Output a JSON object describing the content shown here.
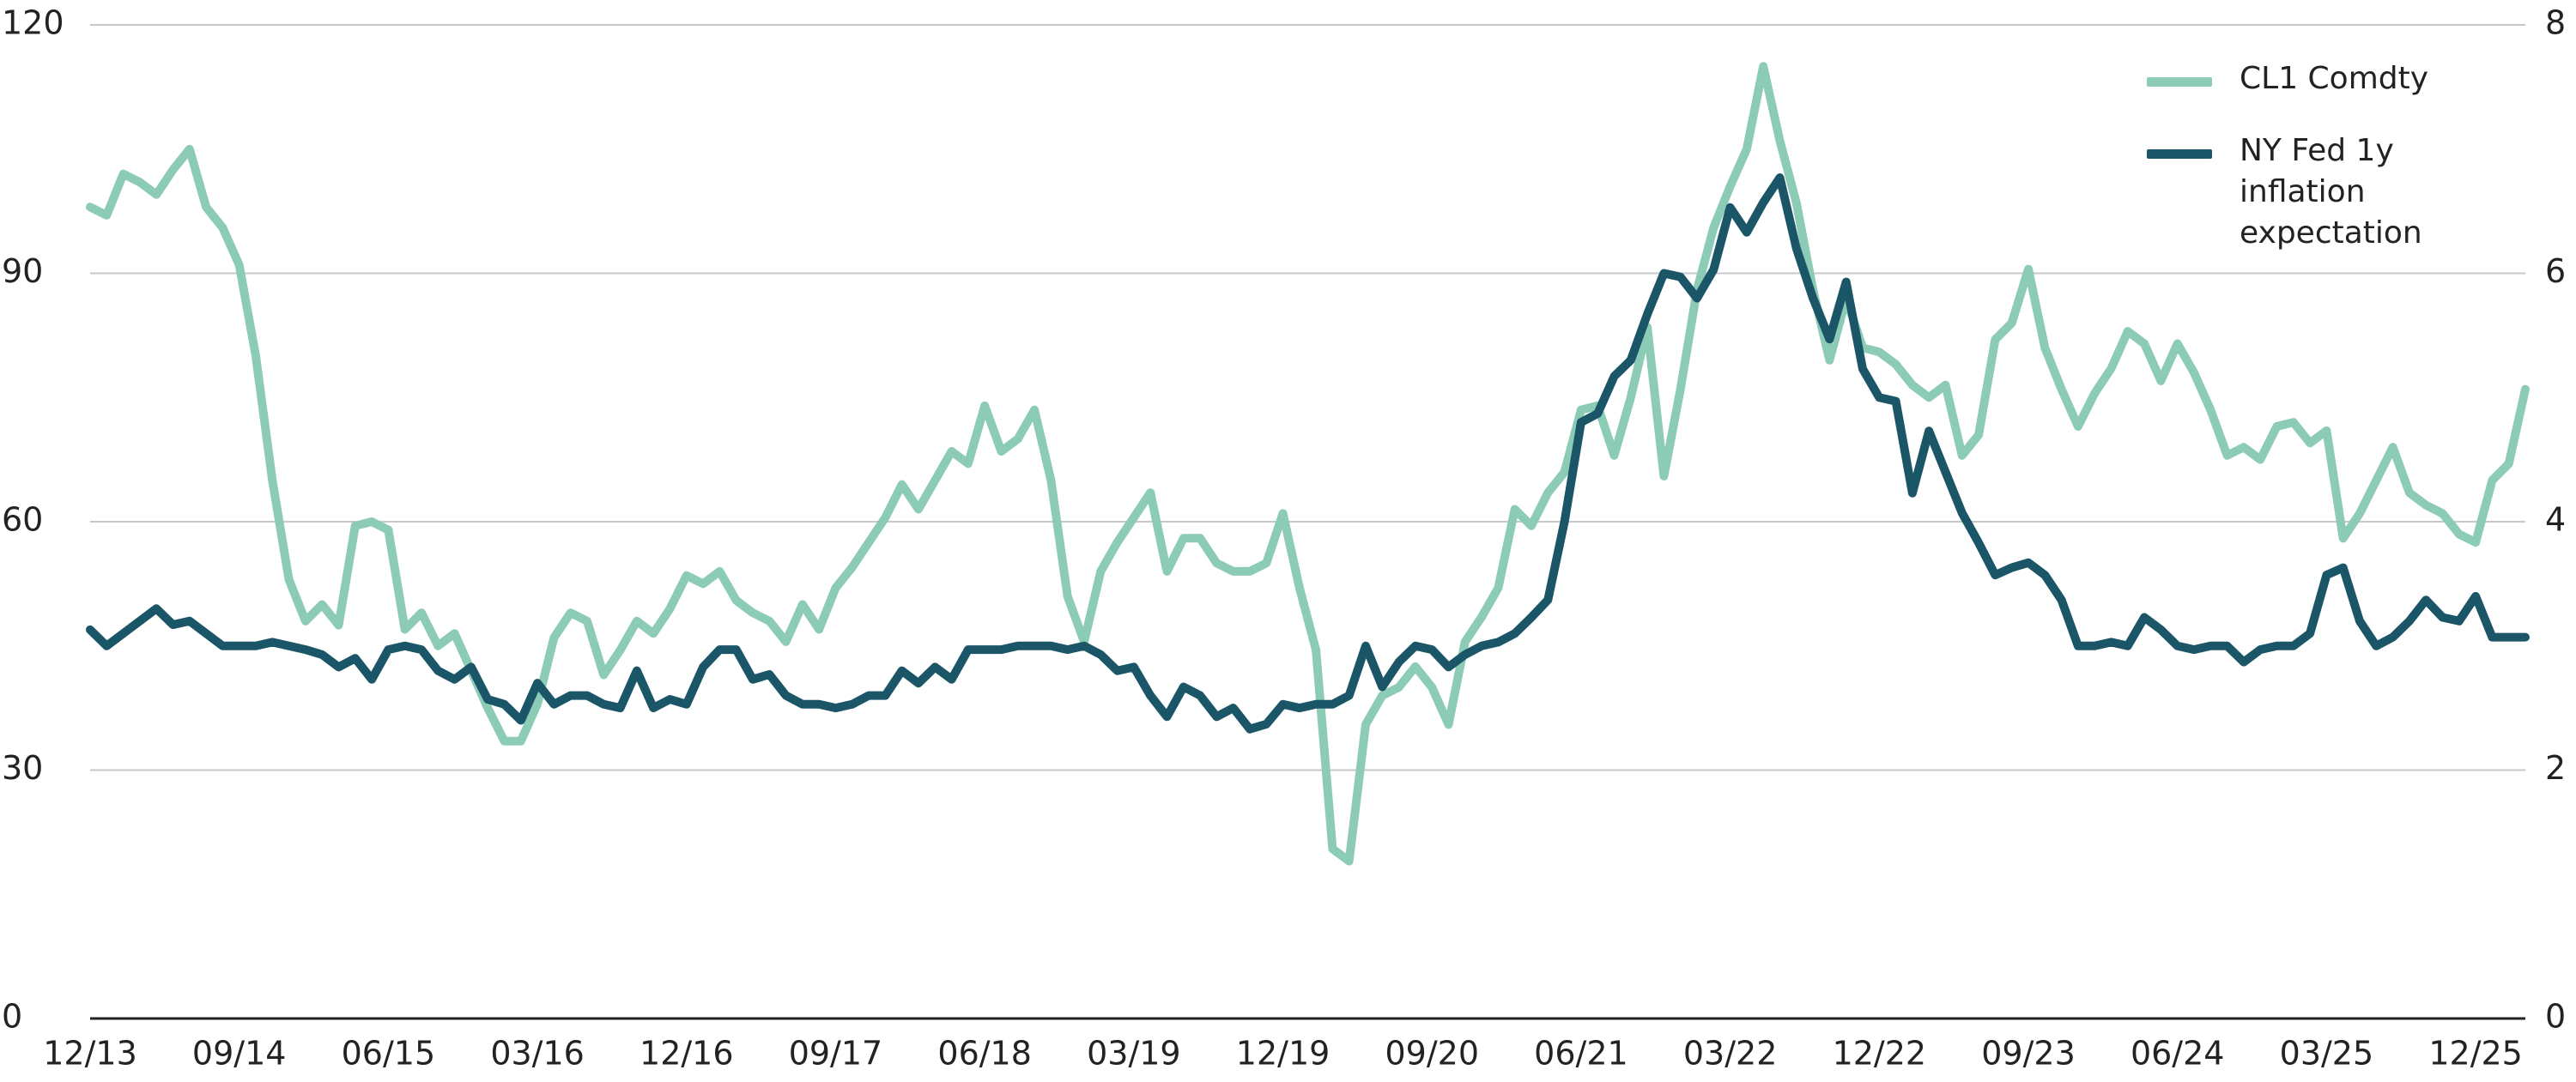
{
  "chart_data": {
    "type": "line",
    "categories": [
      "12/13",
      null,
      null,
      null,
      null,
      null,
      null,
      null,
      null,
      "09/14",
      null,
      null,
      null,
      null,
      null,
      null,
      null,
      null,
      "06/15",
      null,
      null,
      null,
      null,
      null,
      null,
      null,
      null,
      "03/16",
      null,
      null,
      null,
      null,
      null,
      null,
      null,
      null,
      "12/16",
      null,
      null,
      null,
      null,
      null,
      null,
      null,
      null,
      "09/17",
      null,
      null,
      null,
      null,
      null,
      null,
      null,
      null,
      "06/18",
      null,
      null,
      null,
      null,
      null,
      null,
      null,
      null,
      "03/19",
      null,
      null,
      null,
      null,
      null,
      null,
      null,
      null,
      "12/19",
      null,
      null,
      null,
      null,
      null,
      null,
      null,
      null,
      "09/20",
      null,
      null,
      null,
      null,
      null,
      null,
      null,
      null,
      "06/21",
      null,
      null,
      null,
      null,
      null,
      null,
      null,
      null,
      "03/22",
      null,
      null,
      null,
      null,
      null,
      null,
      null,
      null,
      "12/22",
      null,
      null,
      null,
      null,
      null,
      null,
      null,
      null,
      "09/23",
      null,
      null,
      null,
      null,
      null,
      null,
      null,
      null,
      "06/24",
      null,
      null,
      null,
      null,
      null,
      null,
      null,
      null,
      "03/25",
      null,
      null,
      null,
      null,
      null,
      null,
      null,
      null,
      "12/25",
      null,
      null,
      null
    ],
    "series": [
      {
        "name": "CL1 Comdty",
        "color": "#8ccbb6",
        "axis": "y",
        "values": [
          98,
          97,
          102,
          101,
          99.5,
          102.5,
          105,
          98,
          95.5,
          91,
          80,
          65,
          53,
          48,
          50,
          47.5,
          59.5,
          60,
          59,
          47,
          49,
          45,
          46.5,
          42,
          37.5,
          33.5,
          33.5,
          38,
          46,
          49,
          48,
          41.5,
          44.5,
          48,
          46.5,
          49.5,
          53.5,
          52.5,
          54,
          50.5,
          49,
          48,
          45.5,
          50,
          47,
          52,
          54.5,
          57.5,
          60.5,
          64.5,
          61.5,
          65,
          68.5,
          67,
          74,
          68.5,
          70,
          73.5,
          65,
          51,
          45.5,
          54,
          57.5,
          60.5,
          63.5,
          54,
          58,
          58,
          55,
          54,
          54,
          55,
          61,
          52,
          44.5,
          20.5,
          19,
          35.5,
          39,
          40,
          42.5,
          40,
          35.5,
          45.5,
          48.5,
          52,
          61.5,
          59.5,
          63.5,
          66,
          73.5,
          74,
          68,
          75,
          83.5,
          65.5,
          76,
          88,
          95.5,
          100.5,
          105,
          115,
          106,
          98.5,
          88,
          79.5,
          87,
          81,
          80.5,
          79,
          76.5,
          75,
          76.5,
          68,
          70.5,
          82,
          84,
          90.5,
          81,
          76,
          71.5,
          75.5,
          78.5,
          83,
          81.5,
          77,
          81.5,
          78,
          73.5,
          68,
          69,
          67.5,
          71.5,
          72,
          69.5,
          71,
          58,
          61,
          65,
          69,
          63.5,
          62,
          61,
          58.5,
          57.5,
          65,
          67,
          76
        ]
      },
      {
        "name": "NY Fed 1y inflation expectation",
        "color": "#1b5568",
        "axis": "y2",
        "values": [
          3.13,
          3.0,
          3.1,
          3.2,
          3.3,
          3.17,
          3.2,
          3.1,
          3.0,
          3.0,
          3.0,
          3.03,
          3.0,
          2.97,
          2.93,
          2.83,
          2.9,
          2.73,
          2.97,
          3.0,
          2.97,
          2.8,
          2.73,
          2.83,
          2.57,
          2.53,
          2.4,
          2.7,
          2.53,
          2.6,
          2.6,
          2.53,
          2.5,
          2.8,
          2.5,
          2.57,
          2.53,
          2.83,
          2.97,
          2.97,
          2.73,
          2.77,
          2.6,
          2.53,
          2.53,
          2.5,
          2.53,
          2.6,
          2.6,
          2.8,
          2.7,
          2.83,
          2.73,
          2.97,
          2.97,
          2.97,
          3.0,
          3.0,
          3.0,
          2.97,
          3.0,
          2.93,
          2.8,
          2.83,
          2.6,
          2.43,
          2.67,
          2.6,
          2.43,
          2.5,
          2.33,
          2.37,
          2.53,
          2.5,
          2.53,
          2.53,
          2.6,
          3.0,
          2.67,
          2.87,
          3.0,
          2.97,
          2.83,
          2.93,
          3.0,
          3.03,
          3.1,
          3.23,
          3.37,
          4.0,
          4.8,
          4.87,
          5.17,
          5.3,
          5.67,
          6.0,
          5.97,
          5.8,
          6.03,
          6.53,
          6.33,
          6.57,
          6.77,
          6.2,
          5.8,
          5.47,
          5.93,
          5.23,
          5.0,
          4.97,
          4.23,
          4.73,
          4.4,
          4.07,
          3.83,
          3.57,
          3.63,
          3.67,
          3.57,
          3.37,
          3.0,
          3.0,
          3.03,
          3.0,
          3.23,
          3.13,
          3.0,
          2.97,
          3.0,
          3.0,
          2.87,
          2.97,
          3.0,
          3.0,
          3.1,
          3.57,
          3.63,
          3.2,
          3.0,
          3.07,
          3.2,
          3.37,
          3.23,
          3.2,
          3.4,
          3.07,
          3.07,
          3.07
        ]
      }
    ],
    "ylim": [
      0,
      120
    ],
    "yticks": [
      0,
      30,
      60,
      90,
      120
    ],
    "y2lim": [
      0,
      8
    ],
    "y2ticks": [
      0,
      2,
      4,
      6,
      8
    ],
    "grid": true,
    "legend": "top-right"
  }
}
